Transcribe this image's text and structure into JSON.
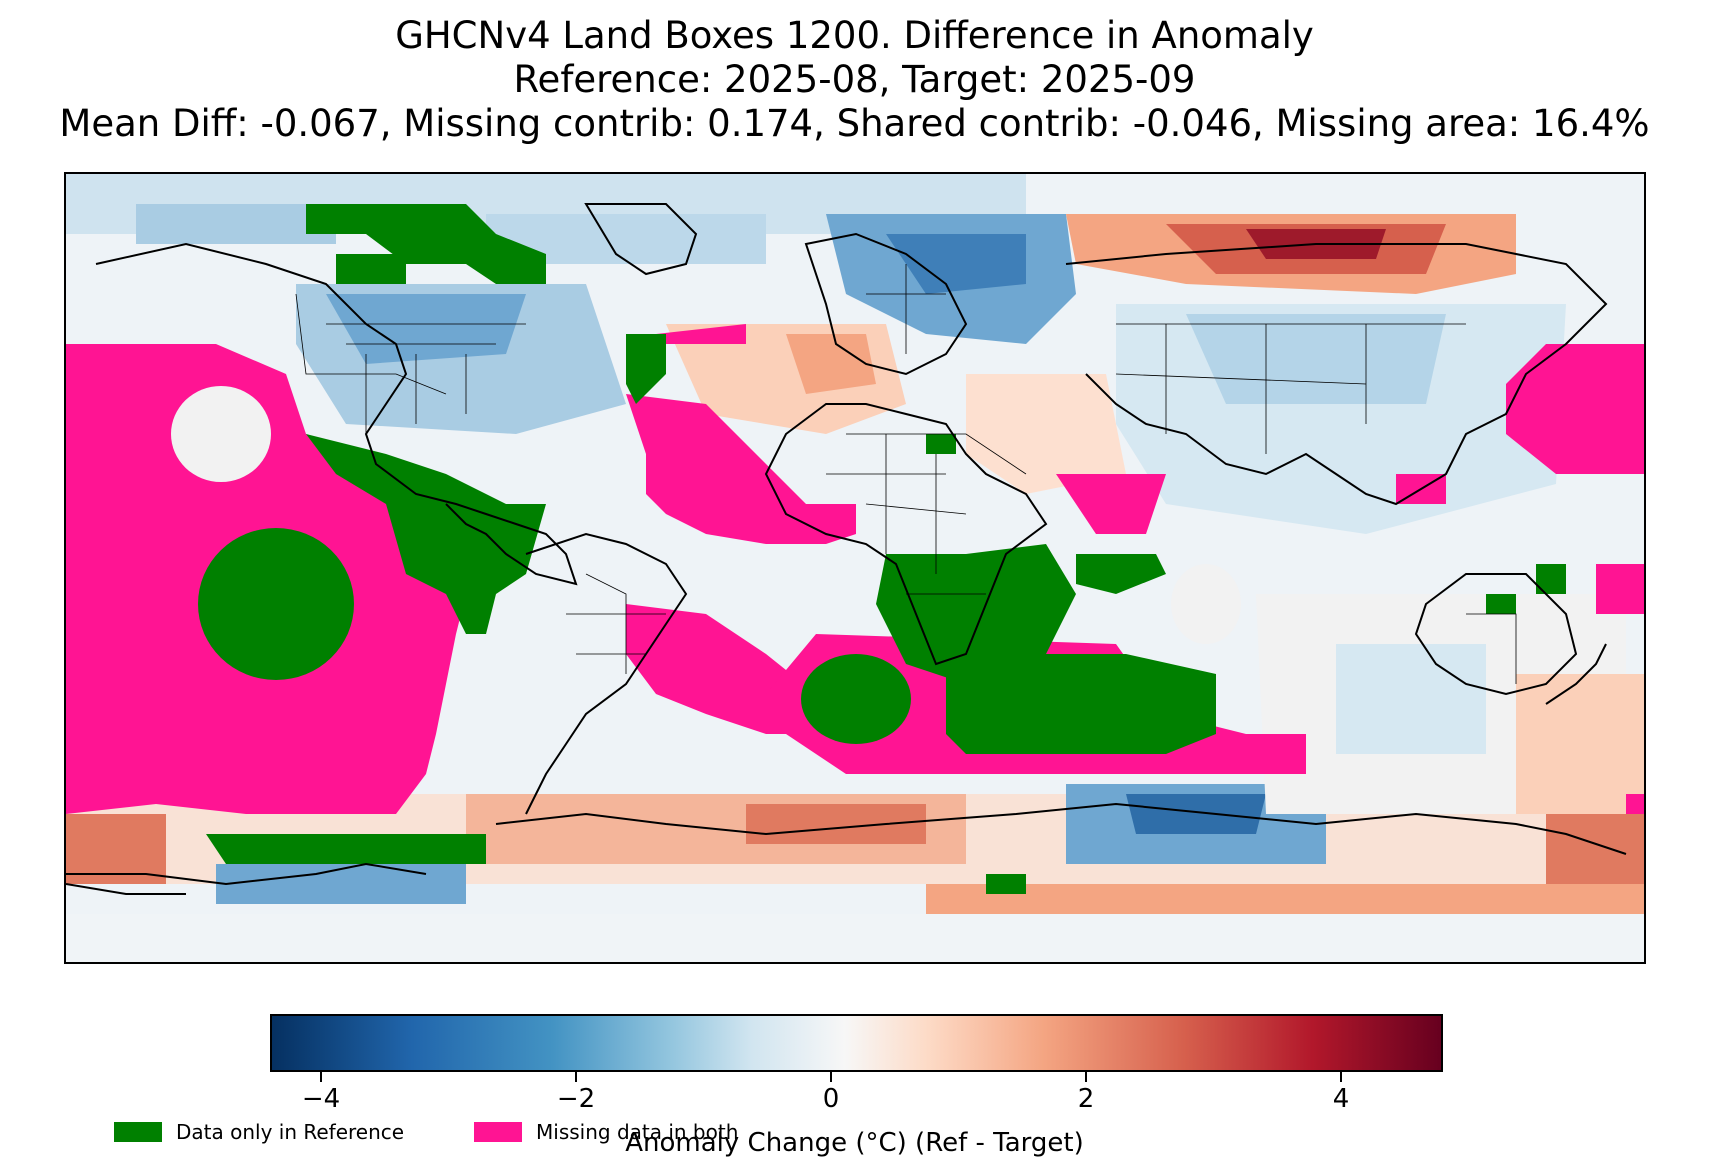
{
  "title": {
    "line1": "GHCNv4 Land Boxes 1200. Difference in Anomaly",
    "line2": "Reference: 2025-08, Target: 2025-09",
    "line3": "Mean Diff: -0.067, Missing contrib: 0.174, Shared contrib: -0.046, Missing area: 16.4%"
  },
  "map": {
    "projection": "plate-carree",
    "extent_lon": [
      -180,
      180
    ],
    "extent_lat": [
      -90,
      90
    ],
    "features": [
      "coastlines",
      "country-borders",
      "state-borders"
    ]
  },
  "colorbar": {
    "label": "Anomaly Change (°C) (Ref - Target)",
    "range": [
      -4.4,
      4.8
    ],
    "colormap": "RdBu_r",
    "ticks": [
      {
        "value": -4,
        "label": "−4"
      },
      {
        "value": -2,
        "label": "−2"
      },
      {
        "value": 0,
        "label": "0"
      },
      {
        "value": 2,
        "label": "2"
      },
      {
        "value": 4,
        "label": "4"
      }
    ]
  },
  "legend": [
    {
      "label": "Data only in Reference",
      "color": "#008000"
    },
    {
      "label": "Missing data in both",
      "color": "#ff1493"
    }
  ]
}
